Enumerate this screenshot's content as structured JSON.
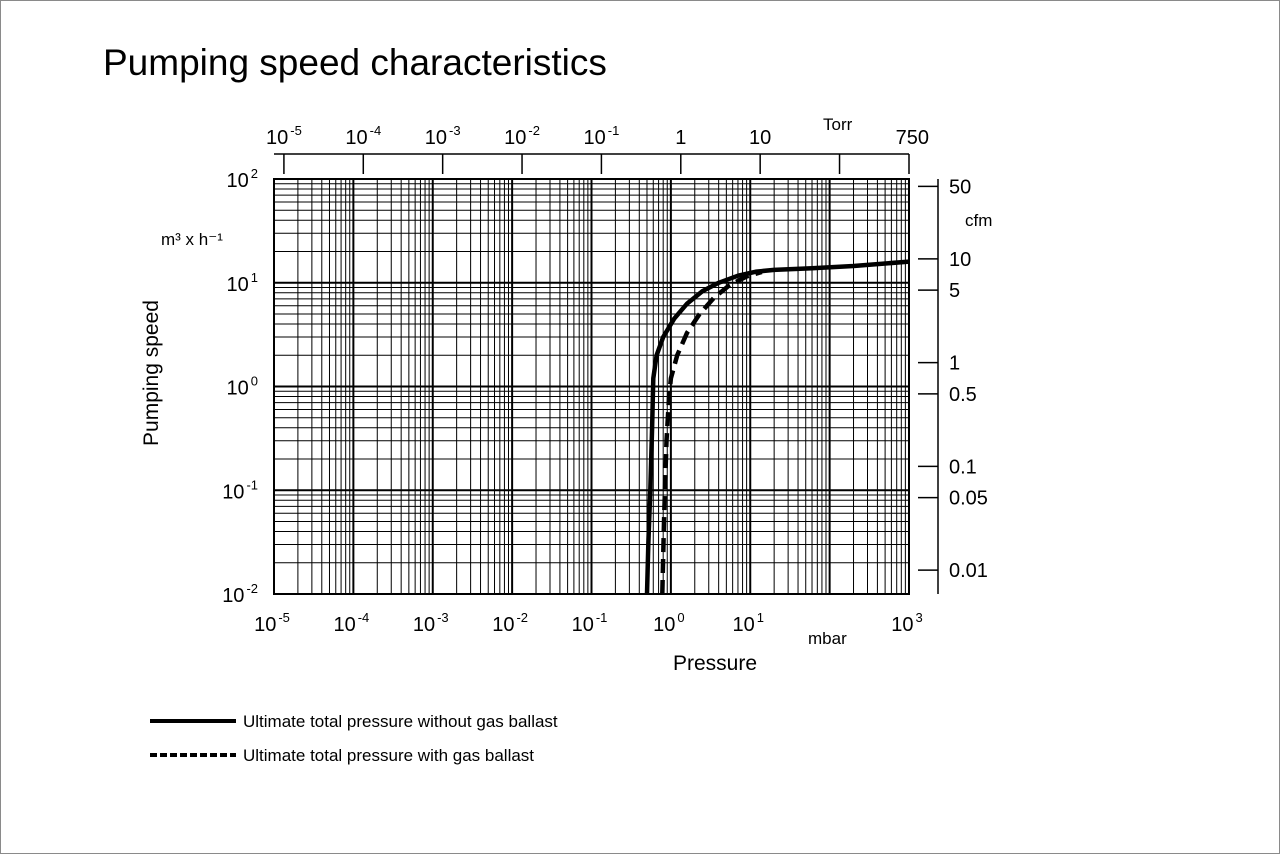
{
  "chart_data": {
    "type": "line",
    "title": "Pumping speed characteristics",
    "xlabel": "Pressure",
    "x_unit": "mbar",
    "ylabel": "Pumping speed",
    "y_unit": "m³ x h⁻¹",
    "x_scale": "log",
    "y_scale": "log",
    "xlim": [
      1e-05,
      1000
    ],
    "ylim": [
      0.01,
      100
    ],
    "grid": true,
    "legend_position": "bottom-left",
    "x_ticks": [
      {
        "base": "10",
        "exp": "-5"
      },
      {
        "base": "10",
        "exp": "-4"
      },
      {
        "base": "10",
        "exp": "-3"
      },
      {
        "base": "10",
        "exp": "-2"
      },
      {
        "base": "10",
        "exp": "-1"
      },
      {
        "base": "10",
        "exp": "0"
      },
      {
        "base": "10",
        "exp": "1"
      },
      {
        "base": "10",
        "exp": "3"
      }
    ],
    "y_ticks": [
      {
        "base": "10",
        "exp": "2"
      },
      {
        "base": "10",
        "exp": "1"
      },
      {
        "base": "10",
        "exp": "0"
      },
      {
        "base": "10",
        "exp": "-1"
      },
      {
        "base": "10",
        "exp": "-2"
      }
    ],
    "top_axis": {
      "unit": "Torr",
      "ticks": [
        {
          "base": "10",
          "exp": "-5",
          "value": 1e-05
        },
        {
          "base": "10",
          "exp": "-4",
          "value": 0.0001
        },
        {
          "base": "10",
          "exp": "-3",
          "value": 0.001
        },
        {
          "base": "10",
          "exp": "-2",
          "value": 0.01
        },
        {
          "base": "10",
          "exp": "-1",
          "value": 0.1
        },
        {
          "base": "1",
          "exp": "",
          "value": 1
        },
        {
          "base": "10",
          "exp": "",
          "value": 10
        },
        {
          "base": "",
          "exp": "",
          "value": 100
        },
        {
          "base": "750",
          "exp": "",
          "value": 750
        }
      ]
    },
    "right_axis": {
      "unit": "cfm",
      "ticks": [
        {
          "label": "50",
          "value": 50
        },
        {
          "label": "10",
          "value": 10
        },
        {
          "label": "5",
          "value": 5
        },
        {
          "label": "1",
          "value": 1
        },
        {
          "label": "0.5",
          "value": 0.5
        },
        {
          "label": "0.1",
          "value": 0.1
        },
        {
          "label": "0.05",
          "value": 0.05
        },
        {
          "label": "0.01",
          "value": 0.01
        }
      ]
    },
    "series": [
      {
        "name": "Ultimate total pressure without gas ballast",
        "style": "solid",
        "color": "#000000",
        "points": [
          [
            0.5,
            0.01
          ],
          [
            0.52,
            0.03
          ],
          [
            0.55,
            0.1
          ],
          [
            0.58,
            0.4
          ],
          [
            0.6,
            1.2
          ],
          [
            0.66,
            2.0
          ],
          [
            0.8,
            3.0
          ],
          [
            1.1,
            4.5
          ],
          [
            1.6,
            6.3
          ],
          [
            2.5,
            8.3
          ],
          [
            4.0,
            10.0
          ],
          [
            7.0,
            11.7
          ],
          [
            12,
            12.8
          ],
          [
            20,
            13.3
          ],
          [
            60,
            13.8
          ],
          [
            200,
            14.5
          ],
          [
            1000,
            16.0
          ]
        ]
      },
      {
        "name": "Ultimate total pressure with gas ballast",
        "style": "dashed",
        "color": "#000000",
        "points": [
          [
            0.78,
            0.01
          ],
          [
            0.82,
            0.05
          ],
          [
            0.88,
            0.3
          ],
          [
            0.95,
            0.8
          ],
          [
            1.0,
            1.2
          ],
          [
            1.2,
            2.0
          ],
          [
            1.6,
            3.3
          ],
          [
            2.3,
            5.0
          ],
          [
            3.5,
            7.2
          ],
          [
            5.5,
            9.5
          ],
          [
            9.0,
            11.5
          ],
          [
            14,
            12.7
          ]
        ]
      }
    ]
  }
}
